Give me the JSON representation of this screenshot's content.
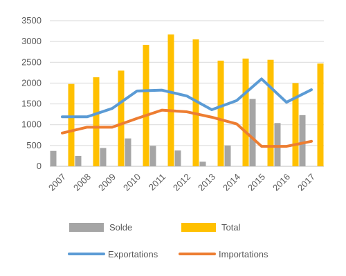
{
  "chart_data": {
    "type": "bar",
    "title": "",
    "xlabel": "",
    "ylabel": "",
    "categories": [
      "2007",
      "2008",
      "2009",
      "2010",
      "2011",
      "2012",
      "2013",
      "2014",
      "2015",
      "2016",
      "2017"
    ],
    "ylim": [
      0,
      3500
    ],
    "yticks": [
      0,
      500,
      1000,
      1500,
      2000,
      2500,
      3000,
      3500
    ],
    "grid": "horizontal",
    "legend_position": "bottom",
    "bar_series": [
      {
        "name": "Solde",
        "color": "#a5a5a5",
        "values": [
          370,
          250,
          440,
          670,
          490,
          380,
          110,
          500,
          1620,
          1040,
          1230
        ]
      },
      {
        "name": "Total",
        "color": "#ffc000",
        "values": [
          1980,
          2140,
          2300,
          2920,
          3170,
          3050,
          2540,
          2590,
          2560,
          2000,
          2470
        ]
      }
    ],
    "line_series": [
      {
        "name": "Exportations",
        "color": "#5b9bd5",
        "values": [
          1190,
          1190,
          1390,
          1810,
          1830,
          1690,
          1360,
          1580,
          2100,
          1540,
          1840
        ]
      },
      {
        "name": "Importations",
        "color": "#ed7d31",
        "values": [
          800,
          940,
          940,
          1150,
          1350,
          1310,
          1180,
          1020,
          480,
          480,
          600
        ]
      }
    ]
  }
}
